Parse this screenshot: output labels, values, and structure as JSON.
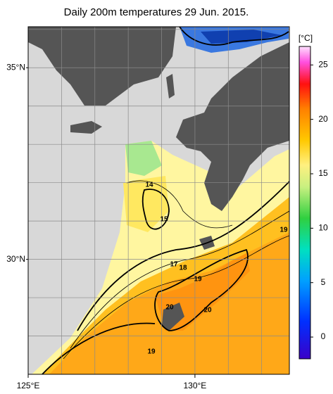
{
  "title": "Daily 200m temperatures 29 Jun. 2015.",
  "map": {
    "lon_range": [
      125,
      132.83
    ],
    "lat_range": [
      27,
      36.07
    ],
    "grid_step": 1,
    "lon_labels": [
      {
        "value": 125,
        "label": "125°E"
      },
      {
        "value": 130,
        "label": "130°E"
      }
    ],
    "lat_labels": [
      {
        "value": 35,
        "label": "35°N"
      },
      {
        "value": 30,
        "label": "30°N"
      }
    ]
  },
  "contour_labels": [
    14,
    15,
    17,
    18,
    19,
    20,
    20,
    19,
    19
  ],
  "colorbar": {
    "unit": "[°C]",
    "range": [
      -2,
      26.7
    ],
    "ticks": [
      0,
      5,
      10,
      15,
      20,
      25
    ]
  }
}
